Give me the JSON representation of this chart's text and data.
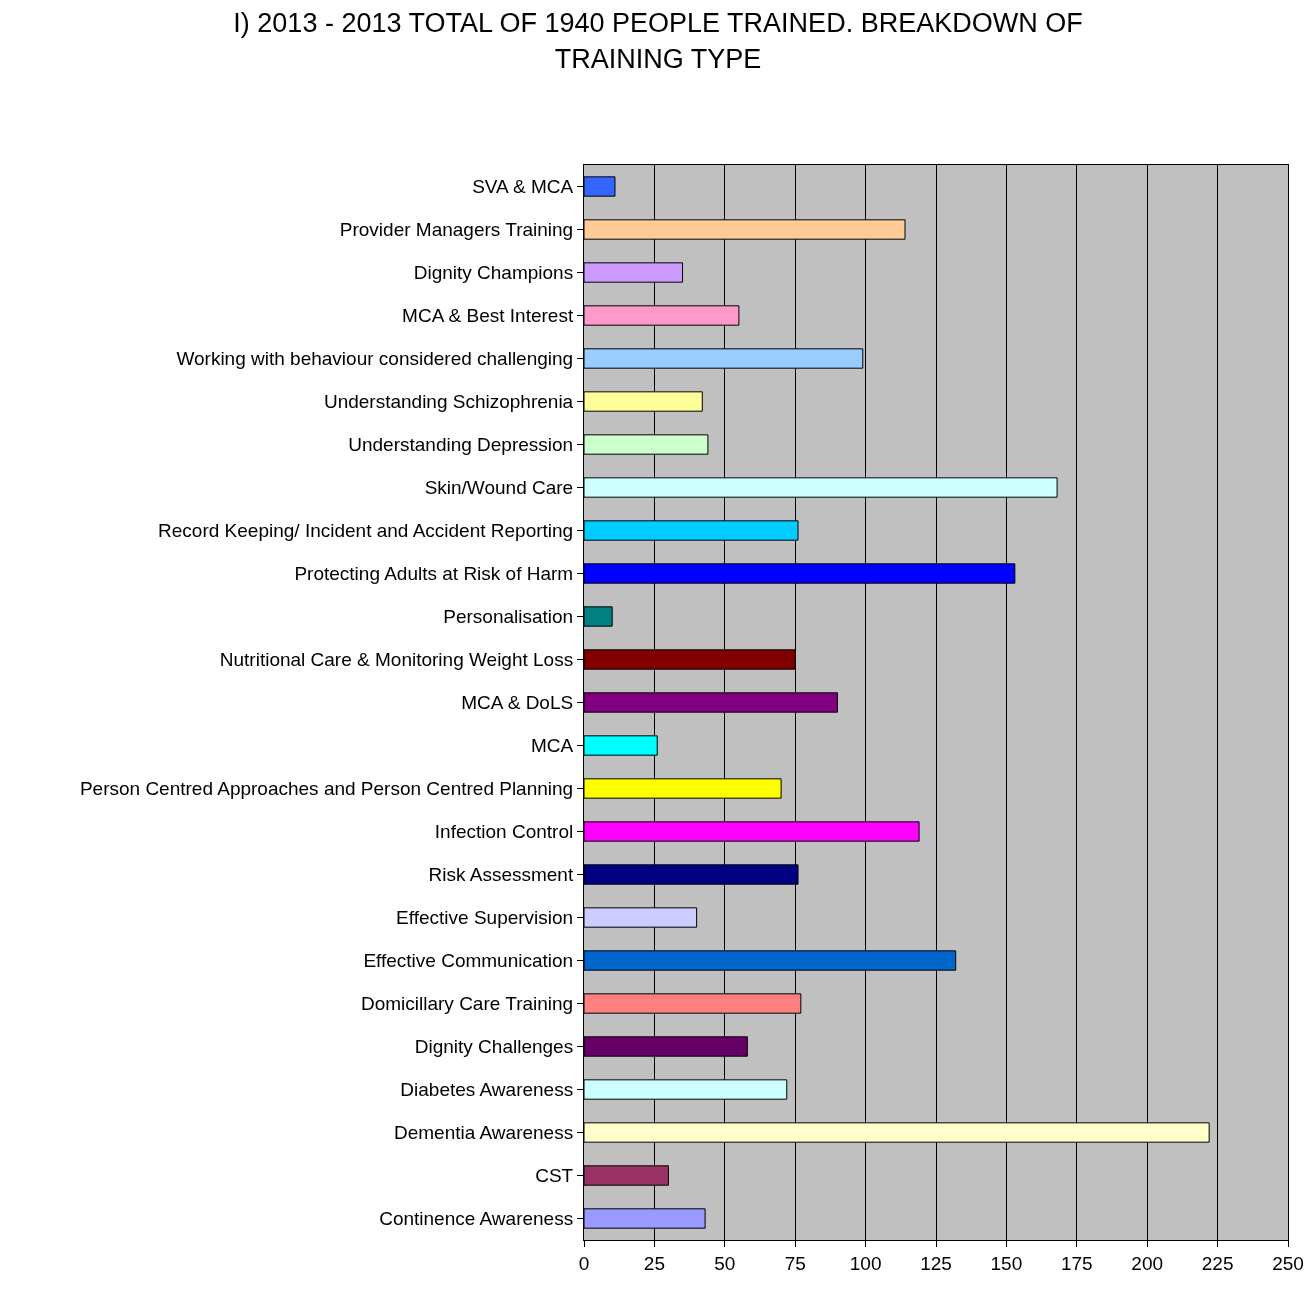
{
  "chart_data": {
    "type": "bar",
    "orientation": "horizontal",
    "title": "I) 2013 - 2013 TOTAL OF 1940 PEOPLE TRAINED. BREAKDOWN OF TRAINING TYPE",
    "categories": [
      "SVA & MCA",
      "Provider Managers Training",
      "Dignity Champions",
      "MCA & Best Interest",
      "Working with behaviour considered challenging",
      "Understanding Schizophrenia",
      "Understanding Depression",
      "Skin/Wound Care",
      "Record Keeping/ Incident and Accident Reporting",
      "Protecting Adults at Risk of Harm",
      "Personalisation",
      "Nutritional Care & Monitoring Weight Loss",
      "MCA & DoLS",
      "MCA",
      "Person Centred Approaches and Person Centred Planning",
      "Infection Control",
      "Risk Assessment",
      "Effective Supervision",
      "Effective Communication",
      "Domicillary Care Training",
      "Dignity Challenges",
      "Diabetes Awareness",
      "Dementia Awareness",
      "CST",
      "Continence Awareness"
    ],
    "values": [
      11,
      114,
      35,
      55,
      99,
      42,
      44,
      168,
      76,
      153,
      10,
      75,
      90,
      26,
      70,
      119,
      76,
      40,
      132,
      77,
      58,
      72,
      222,
      30,
      43
    ],
    "colors": [
      "#3366ff",
      "#ffcc99",
      "#cc99ff",
      "#ff99cc",
      "#99ccff",
      "#ffff99",
      "#ccffcc",
      "#ccffff",
      "#00ccff",
      "#0000ff",
      "#008080",
      "#800000",
      "#800080",
      "#00ffff",
      "#ffff00",
      "#ff00ff",
      "#000080",
      "#ccccff",
      "#0066cc",
      "#ff8080",
      "#660066",
      "#ccffff",
      "#ffffcc",
      "#993366",
      "#9999ff"
    ],
    "xlim": [
      0,
      250
    ],
    "xticks": [
      0,
      25,
      50,
      75,
      100,
      125,
      150,
      175,
      200,
      225,
      250
    ],
    "grid": "x"
  }
}
